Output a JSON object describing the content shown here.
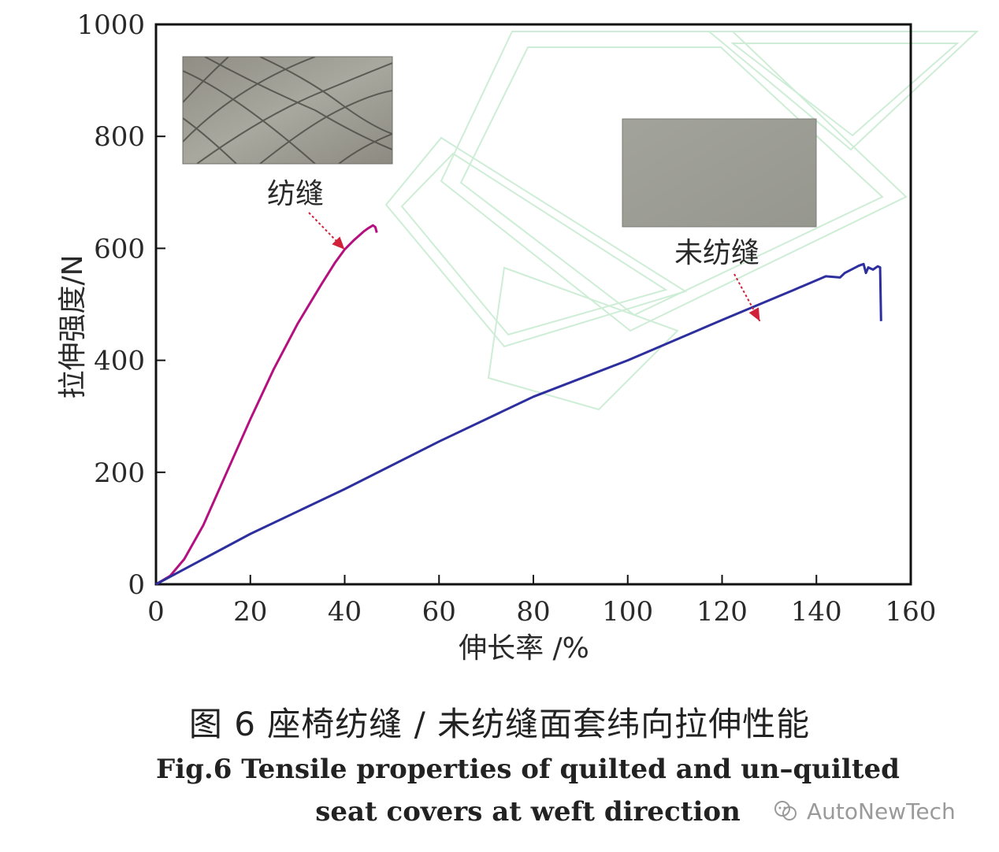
{
  "chart_data": {
    "type": "line",
    "ylabel": "拉伸强度/N",
    "xlabel": "伸长率 /%",
    "xlim": [
      0,
      160
    ],
    "ylim": [
      0,
      1000
    ],
    "xticks": [
      0,
      20,
      40,
      60,
      80,
      100,
      120,
      140,
      160
    ],
    "yticks": [
      0,
      200,
      400,
      600,
      800,
      1000
    ],
    "grid": false,
    "series": [
      {
        "name": "纺缝",
        "color": "#b4107f",
        "points": [
          [
            0,
            0
          ],
          [
            3,
            15
          ],
          [
            6,
            45
          ],
          [
            10,
            105
          ],
          [
            15,
            200
          ],
          [
            20,
            295
          ],
          [
            25,
            385
          ],
          [
            30,
            465
          ],
          [
            35,
            535
          ],
          [
            38,
            575
          ],
          [
            40,
            598
          ],
          [
            42,
            615
          ],
          [
            44,
            630
          ],
          [
            45,
            636
          ],
          [
            46,
            641
          ],
          [
            46.5,
            638
          ],
          [
            46.8,
            628
          ]
        ]
      },
      {
        "name": "未纺缝",
        "color": "#2d2f9e",
        "points": [
          [
            0,
            0
          ],
          [
            10,
            45
          ],
          [
            20,
            90
          ],
          [
            40,
            170
          ],
          [
            60,
            255
          ],
          [
            80,
            335
          ],
          [
            100,
            400
          ],
          [
            120,
            472
          ],
          [
            135,
            525
          ],
          [
            142,
            550
          ],
          [
            145,
            548
          ],
          [
            146,
            556
          ],
          [
            149,
            569
          ],
          [
            150,
            572
          ],
          [
            150.5,
            556
          ],
          [
            151,
            566
          ],
          [
            152,
            562
          ],
          [
            153,
            568
          ],
          [
            153.5,
            566
          ],
          [
            153.7,
            470
          ]
        ]
      }
    ],
    "annotations": [
      {
        "text": "纺缝",
        "points_to": [
          40,
          598
        ]
      },
      {
        "text": "未纺缝",
        "points_to": [
          128,
          470
        ]
      }
    ],
    "insets": [
      "quilted-sample-photo",
      "unquilted-sample-photo"
    ]
  },
  "caption": {
    "cn": "图 6  座椅纺缝 / 未纺缝面套纬向拉伸性能",
    "en": "Fig.6  Tensile properties of quilted and un–quilted seat covers at weft direction"
  },
  "watermark": {
    "text": "AutoNewTech",
    "icon": "wechat-icon"
  }
}
